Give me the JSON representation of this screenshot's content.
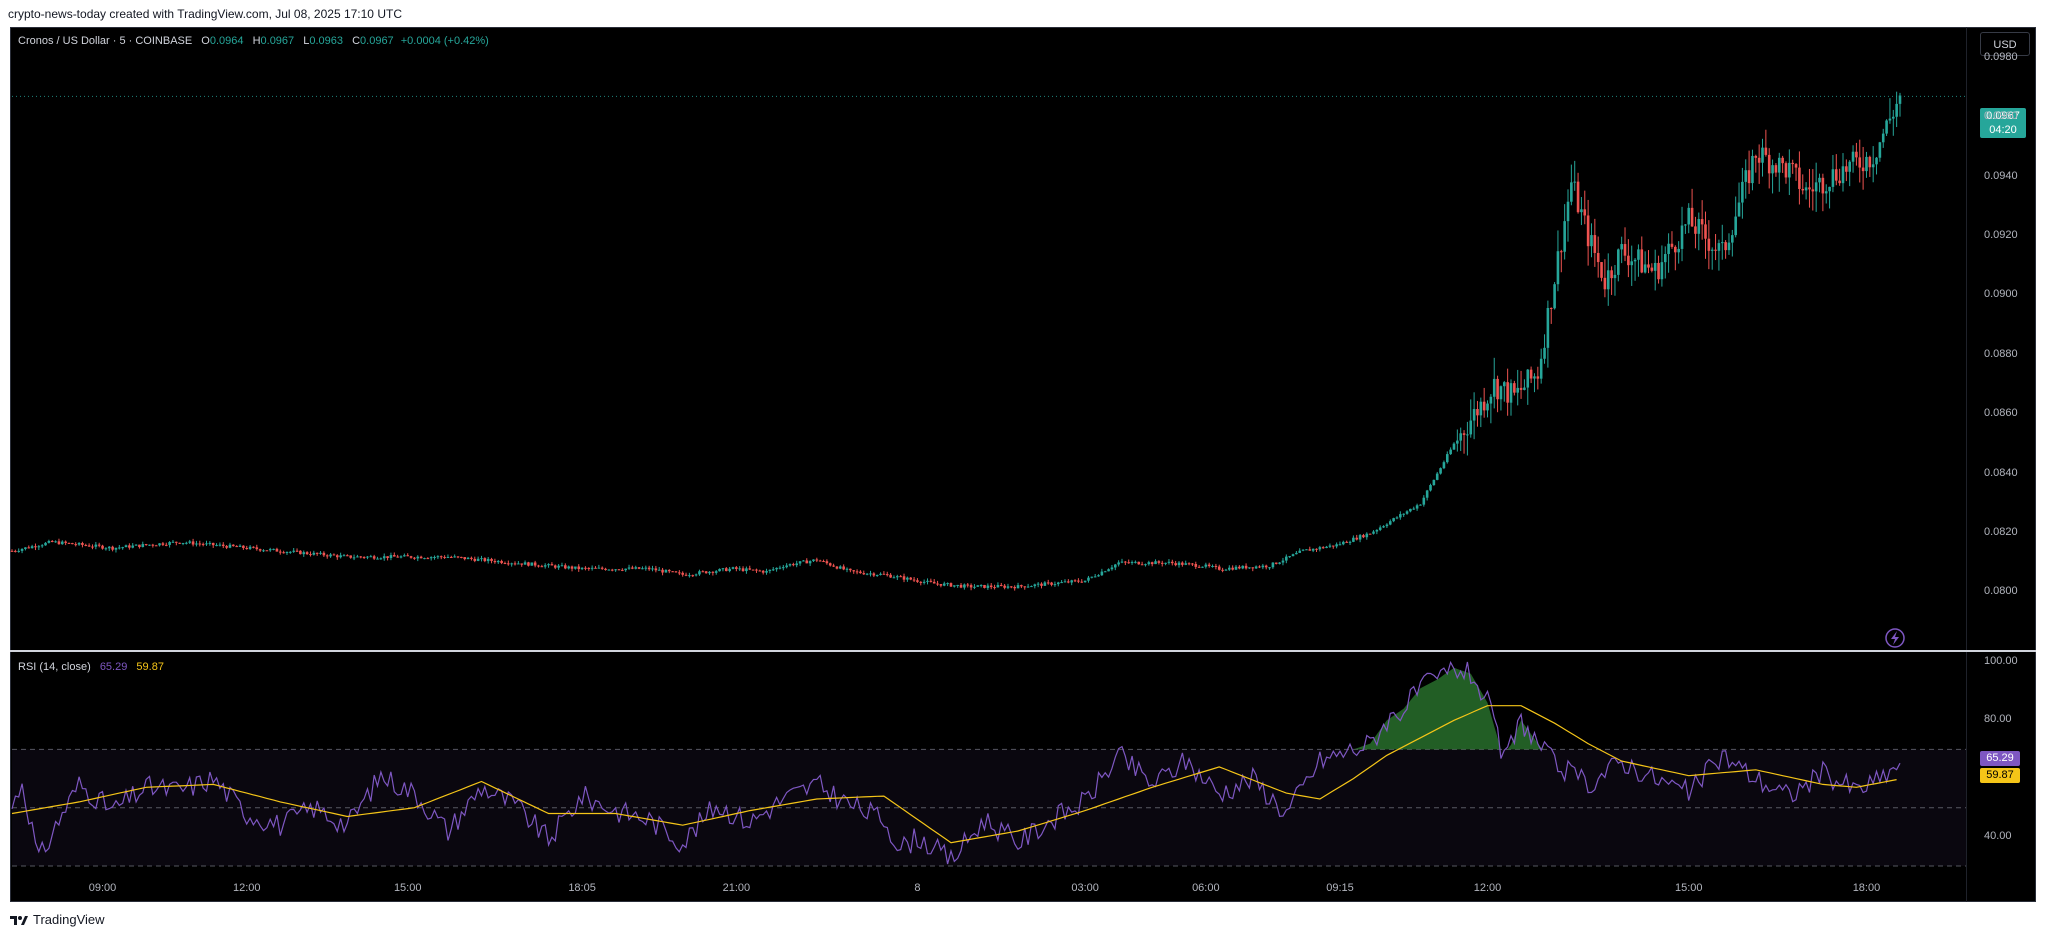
{
  "attribution": "crypto-news-today created with TradingView.com, Jul 08, 2025 17:10 UTC",
  "legend": {
    "symbol": "Cronos / US Dollar · 5 · COINBASE",
    "o_label": "O",
    "o_value": "0.0964",
    "h_label": "H",
    "h_value": "0.0967",
    "l_label": "L",
    "l_value": "0.0963",
    "c_label": "C",
    "c_value": "0.0967",
    "change": "+0.0004 (+0.42%)"
  },
  "currency_button": "USD",
  "last_price": {
    "price": "0.0967",
    "countdown": "04:20"
  },
  "rsi_legend": {
    "label": "RSI (14, close)",
    "rsi": "65.29",
    "ma": "59.87"
  },
  "rsi_tags": {
    "rsi": "65.29",
    "ma": "59.87"
  },
  "footer_brand": "TradingView",
  "colors": {
    "up": "#26a69a",
    "down": "#ef5350",
    "rsi": "#7e57c2",
    "rsi_ma": "#f5c518",
    "background": "#000000"
  },
  "chart_data": [
    {
      "type": "candlestick",
      "title": "Cronos / US Dollar · 5 · COINBASE",
      "y_ticks": [
        "0.0980",
        "0.0960",
        "0.0940",
        "0.0920",
        "0.0900",
        "0.0880",
        "0.0860",
        "0.0840",
        "0.0820",
        "0.0800"
      ],
      "ylim": [
        0.0784,
        0.0986
      ],
      "x_ticks": [
        "09:00",
        "12:00",
        "15:00",
        "18:05",
        "21:00",
        "8",
        "03:00",
        "06:00",
        "09:15",
        "12:00",
        "15:00",
        "18:00"
      ],
      "price_keyframes": {
        "time_index": [
          0,
          12,
          30,
          50,
          70,
          100,
          130,
          150,
          170,
          190,
          200,
          215,
          225,
          230,
          240,
          250,
          260,
          275,
          285,
          300,
          310,
          320,
          330,
          345,
          355,
          360,
          375,
          385,
          395,
          405,
          420,
          430,
          442,
          448,
          455,
          465,
          470,
          475,
          480,
          490,
          500,
          510,
          520,
          530,
          535,
          545,
          555,
          563
        ],
        "close": [
          0.0814,
          0.0817,
          0.0815,
          0.0817,
          0.0815,
          0.0812,
          0.0812,
          0.081,
          0.0808,
          0.0808,
          0.0806,
          0.0808,
          0.0807,
          0.0809,
          0.0811,
          0.0807,
          0.0806,
          0.0803,
          0.0802,
          0.0802,
          0.0803,
          0.0804,
          0.081,
          0.081,
          0.0809,
          0.0808,
          0.0809,
          0.0814,
          0.0816,
          0.082,
          0.083,
          0.085,
          0.087,
          0.0866,
          0.0874,
          0.0938,
          0.092,
          0.0905,
          0.0915,
          0.0908,
          0.0925,
          0.0914,
          0.0948,
          0.0942,
          0.0935,
          0.0942,
          0.0947,
          0.0967
        ]
      }
    },
    {
      "type": "line",
      "title": "RSI (14, close)",
      "y_ticks": [
        "100.00",
        "80.00",
        "40.00"
      ],
      "ylim": [
        30,
        100
      ],
      "bands": {
        "upper": 70,
        "middle": 50,
        "lower": 30
      },
      "series": [
        {
          "name": "RSI",
          "x": [
            0,
            3,
            8,
            15,
            20,
            30,
            40,
            50,
            60,
            70,
            80,
            90,
            100,
            110,
            120,
            130,
            140,
            150,
            160,
            170,
            180,
            190,
            200,
            210,
            220,
            230,
            240,
            250,
            260,
            265,
            270,
            280,
            290,
            300,
            310,
            320,
            330,
            340,
            350,
            360,
            370,
            380,
            390,
            400,
            405,
            410,
            415,
            420,
            425,
            430,
            435,
            440,
            445,
            450,
            455,
            460,
            470,
            480,
            490,
            500,
            510,
            520,
            530,
            540,
            550,
            556,
            563
          ],
          "values": [
            50,
            59,
            32,
            48,
            58,
            49,
            57,
            56,
            60,
            48,
            44,
            50,
            44,
            61,
            55,
            42,
            57,
            51,
            39,
            54,
            49,
            46,
            38,
            51,
            45,
            53,
            58,
            51,
            46,
            36,
            40,
            32,
            46,
            38,
            46,
            52,
            68,
            58,
            66,
            55,
            60,
            48,
            66,
            70,
            72,
            80,
            84,
            91,
            94,
            98,
            96,
            86,
            66,
            80,
            72,
            65,
            58,
            66,
            60,
            55,
            68,
            60,
            54,
            62,
            56,
            59,
            65.29
          ]
        },
        {
          "name": "MA",
          "x": [
            0,
            20,
            40,
            60,
            80,
            100,
            120,
            140,
            160,
            180,
            200,
            220,
            240,
            260,
            270,
            280,
            300,
            320,
            340,
            360,
            380,
            390,
            400,
            410,
            420,
            430,
            440,
            450,
            460,
            470,
            480,
            500,
            520,
            540,
            550,
            563
          ],
          "values": [
            48,
            52,
            57,
            58,
            52,
            47,
            50,
            59,
            48,
            48,
            44,
            49,
            53,
            54,
            46,
            38,
            42,
            49,
            57,
            64,
            55,
            53,
            60,
            68,
            74,
            80,
            85,
            85,
            79,
            72,
            66,
            61,
            63,
            58,
            57,
            59.87
          ]
        }
      ]
    }
  ]
}
